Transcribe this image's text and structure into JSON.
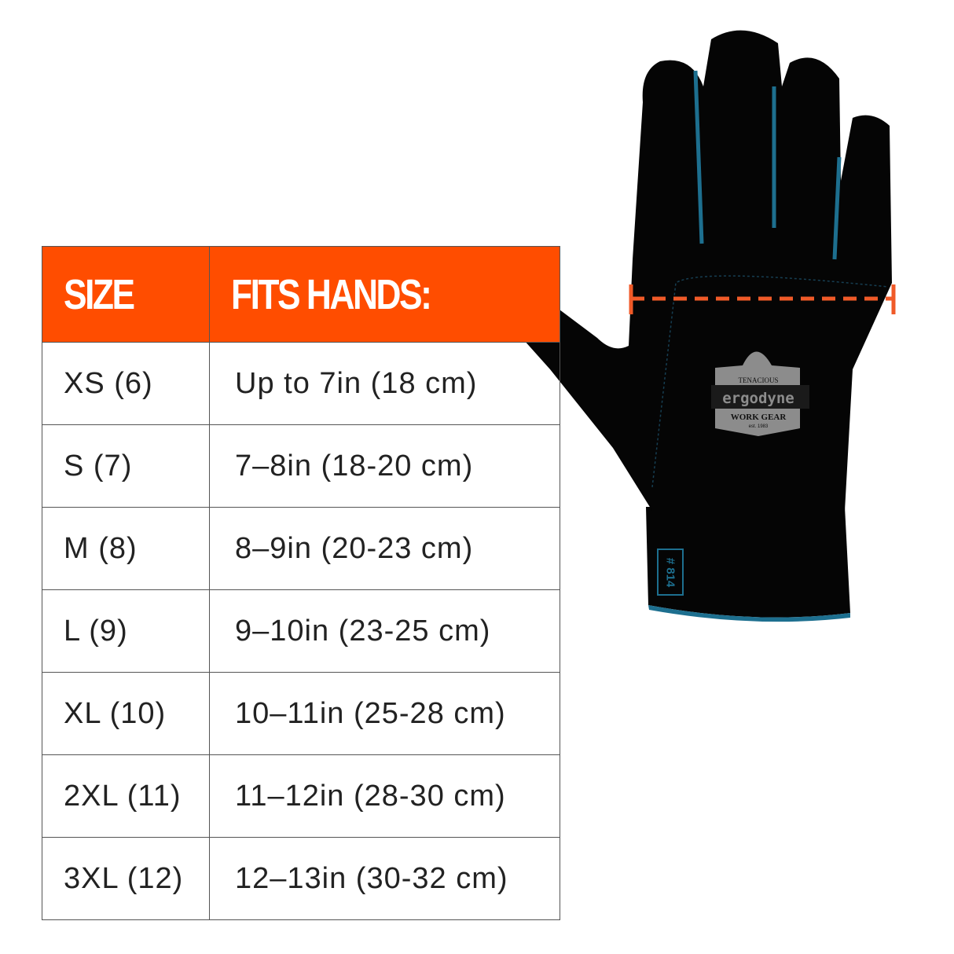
{
  "table": {
    "headers": [
      "SIZE",
      "FITS HANDS:"
    ],
    "rows": [
      {
        "size": "XS (6)",
        "fits": "Up to 7in (18 cm)"
      },
      {
        "size": "S (7)",
        "fits": "7–8in (18-20 cm)"
      },
      {
        "size": "M (8)",
        "fits": "8–9in (20-23 cm)"
      },
      {
        "size": "L (9)",
        "fits": "9–10in (23-25 cm)"
      },
      {
        "size": "XL (10)",
        "fits": "10–11in (25-28 cm)"
      },
      {
        "size": "2XL (11)",
        "fits": "11–12in (28-30 cm)"
      },
      {
        "size": "3XL (12)",
        "fits": "12–13in (30-32 cm)"
      }
    ]
  },
  "glove": {
    "logo": {
      "tagline": "TENACIOUS",
      "brand": "ergodyne",
      "sub": "WORK GEAR",
      "est": "est. 1983"
    },
    "cuff_label": "# 814"
  },
  "colors": {
    "header": "#ff4d00",
    "measure_line": "#f05a28",
    "glove": "#050505",
    "accent": "#1d6f8f"
  }
}
